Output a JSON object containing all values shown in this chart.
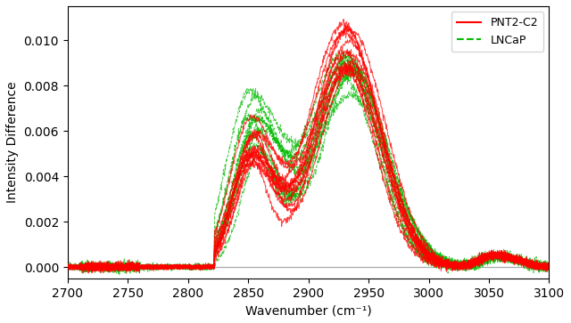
{
  "x_min": 2700,
  "x_max": 3100,
  "y_min": -0.0005,
  "y_max": 0.0115,
  "xlabel": "Wavenumber (cm⁻¹)",
  "ylabel": "Intensity Difference",
  "xticks": [
    2700,
    2750,
    2800,
    2850,
    2900,
    2950,
    3000,
    3050,
    3100
  ],
  "yticks": [
    0.0,
    0.002,
    0.004,
    0.006,
    0.008,
    0.01
  ],
  "pnt2_color": "#ff0000",
  "lncap_color": "#00bb00",
  "lncap_linestyle": "--",
  "pnt2_linestyle": "-",
  "legend_pnt2": "PNT2-C2",
  "legend_lncap": "LNCaP",
  "n_pnt2": 13,
  "n_lncap": 11,
  "alpha": 0.75,
  "linewidth": 0.7,
  "hline_y": 0.0,
  "hline_color": "#aaaaaa",
  "figsize": [
    6.4,
    3.63
  ],
  "dpi": 100
}
